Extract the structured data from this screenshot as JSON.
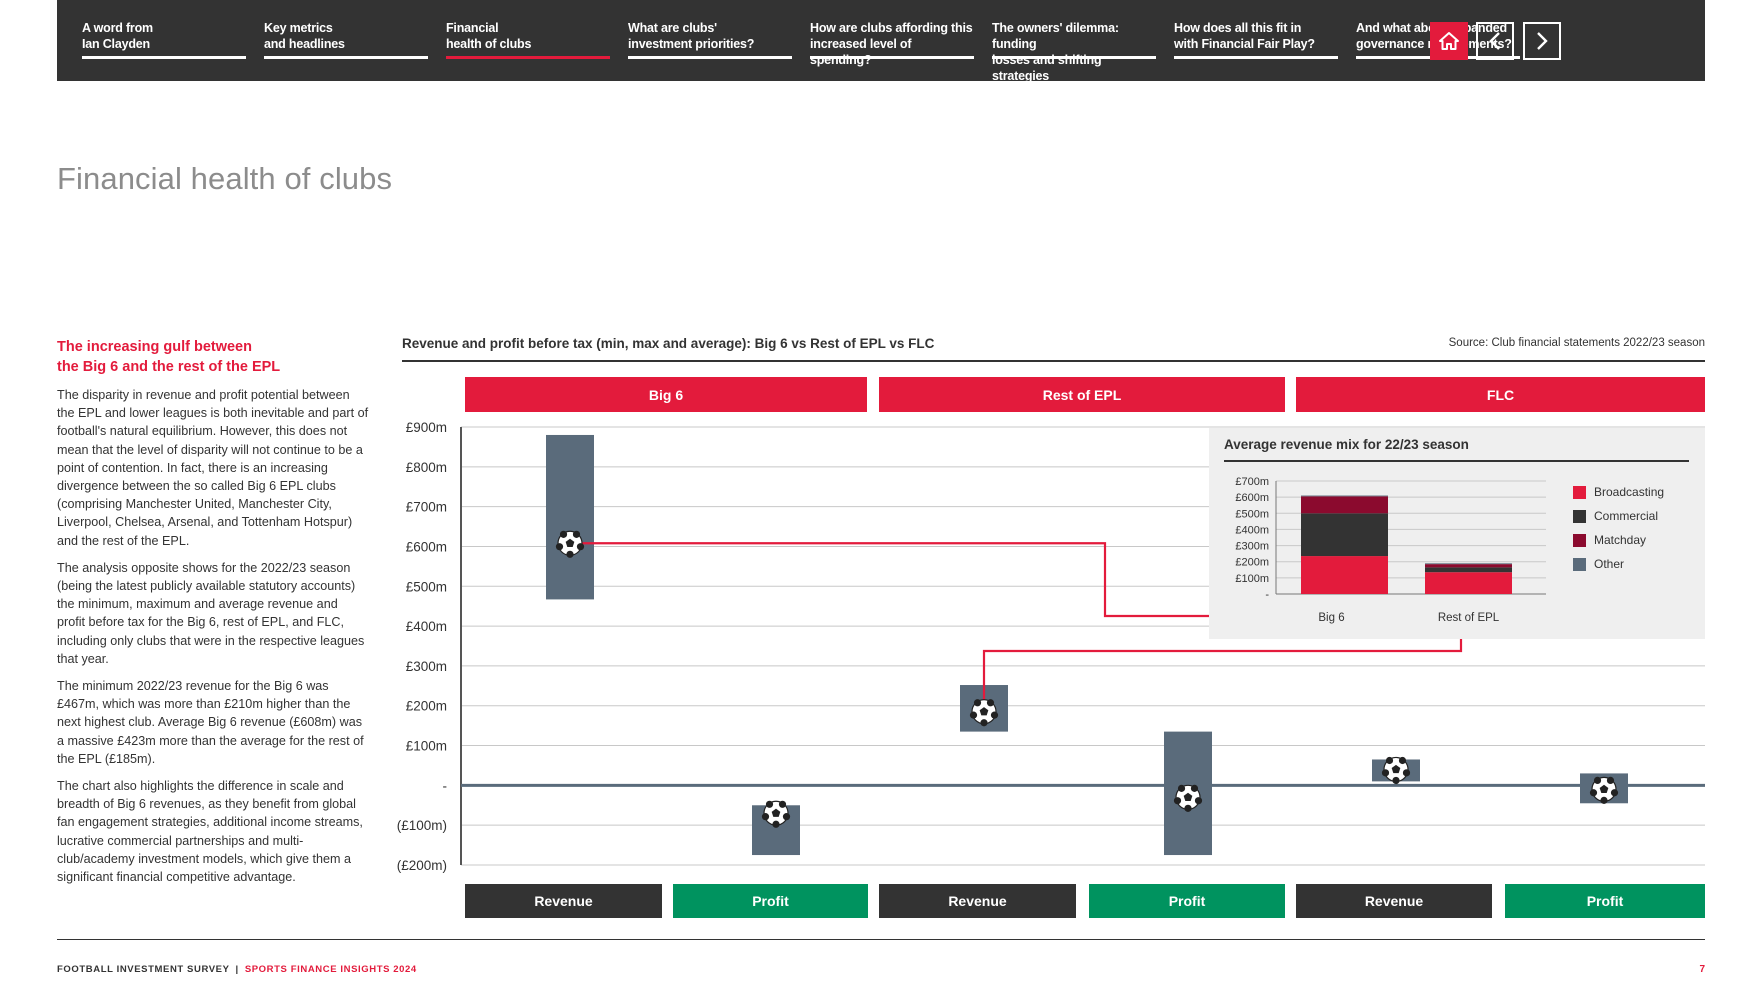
{
  "nav": {
    "items": [
      {
        "line1": "A word from",
        "line2": "Ian Clayden",
        "active": false
      },
      {
        "line1": "Key metrics",
        "line2": "and headlines",
        "active": false
      },
      {
        "line1": "Financial",
        "line2": "health of clubs",
        "active": true
      },
      {
        "line1": "What are clubs'",
        "line2": "investment priorities?",
        "active": false
      },
      {
        "line1": "How are clubs affording this",
        "line2": "increased level of spending?",
        "active": false
      },
      {
        "line1": "The owners' dilemma: funding",
        "line2": "losses and shifting strategies",
        "active": false
      },
      {
        "line1": "How does all this fit in",
        "line2": "with Financial Fair Play?",
        "active": false
      },
      {
        "line1": "And what about expanded",
        "line2": "governance requirements?",
        "active": false
      }
    ],
    "home_icon": "home-icon",
    "prev_icon": "chevron-left-icon",
    "next_icon": "chevron-right-icon"
  },
  "page_title": "Financial health of clubs",
  "lead": {
    "line1": "The increasing gulf between",
    "line2": "the Big 6 and the rest of the EPL"
  },
  "paragraphs": [
    "The disparity in revenue and profit potential between the EPL and lower leagues is both inevitable and part of football's natural equilibrium. However, this does not mean that the level of disparity will not continue to be a point of contention. In fact, there is an increasing divergence between the so called Big 6 EPL clubs (comprising Manchester United, Manchester City, Liverpool, Chelsea, Arsenal, and Tottenham Hotspur) and the rest of the EPL.",
    "The analysis opposite shows for the 2022/23 season (being the latest publicly available statutory accounts) the minimum, maximum and average revenue and profit before tax for the Big 6, rest of EPL, and FLC, including only clubs that were in the respective leagues that year.",
    "The minimum 2022/23 revenue for the Big 6 was £467m, which was more than £210m higher than the next highest club. Average Big 6 revenue (£608m) was a massive £423m more than the average for the rest of the EPL (£185m).",
    "The chart also highlights the difference in scale and breadth of Big 6 revenues, as they benefit from global fan engagement strategies, additional income streams, lucrative commercial partnerships and multi-club/academy investment models, which give them a significant financial competitive advantage."
  ],
  "colors": {
    "accent": "#e31b3c",
    "dark": "#333333",
    "profit": "#00935f",
    "range_bar": "#5a6b7b",
    "grid": "#c8c8c8"
  },
  "chart_data": [
    {
      "type": "bar",
      "subtype": "floating-range-with-average-marker",
      "title": "Revenue and profit before tax (min, max and average): Big 6 vs Rest of EPL vs FLC",
      "source": "Source: Club financial statements 2022/23 season",
      "groups": [
        "Big 6",
        "Rest of EPL",
        "FLC"
      ],
      "categories": [
        "Revenue",
        "Profit"
      ],
      "y_unit": "£m",
      "ylim": [
        -200,
        900
      ],
      "y_ticks": [
        {
          "value": 900,
          "label": "£900m"
        },
        {
          "value": 800,
          "label": "£800m"
        },
        {
          "value": 700,
          "label": "£700m"
        },
        {
          "value": 600,
          "label": "£600m"
        },
        {
          "value": 500,
          "label": "£500m"
        },
        {
          "value": 400,
          "label": "£400m"
        },
        {
          "value": 300,
          "label": "£300m"
        },
        {
          "value": 200,
          "label": "£200m"
        },
        {
          "value": 100,
          "label": "£100m"
        },
        {
          "value": 0,
          "label": "-"
        },
        {
          "value": -100,
          "label": "(£100m)"
        },
        {
          "value": -200,
          "label": "(£200m)"
        }
      ],
      "grid": true,
      "marker_icon": "football-icon",
      "series": [
        {
          "group": "Big 6",
          "category": "Revenue",
          "min": 467,
          "max": 880,
          "avg": 608
        },
        {
          "group": "Big 6",
          "category": "Profit",
          "min": -175,
          "max": -50,
          "avg": -70
        },
        {
          "group": "Rest of EPL",
          "category": "Revenue",
          "min": 135,
          "max": 252,
          "avg": 185
        },
        {
          "group": "Rest of EPL",
          "category": "Profit",
          "min": -175,
          "max": 135,
          "avg": -30
        },
        {
          "group": "FLC",
          "category": "Revenue",
          "min": 10,
          "max": 65,
          "avg": 40
        },
        {
          "group": "FLC",
          "category": "Profit",
          "min": -45,
          "max": 30,
          "avg": -10
        }
      ]
    },
    {
      "type": "bar",
      "subtype": "stacked",
      "title": "Average revenue mix for 22/23 season",
      "categories": [
        "Big 6",
        "Rest of EPL"
      ],
      "y_unit": "£m",
      "ylim": [
        0,
        700
      ],
      "y_ticks": [
        {
          "value": 700,
          "label": "£700m"
        },
        {
          "value": 600,
          "label": "£600m"
        },
        {
          "value": 500,
          "label": "£500m"
        },
        {
          "value": 400,
          "label": "£400m"
        },
        {
          "value": 300,
          "label": "£300m"
        },
        {
          "value": 200,
          "label": "£200m"
        },
        {
          "value": 100,
          "label": "£100m"
        },
        {
          "value": 0,
          "label": "-"
        }
      ],
      "legend_position": "right",
      "series": [
        {
          "name": "Broadcasting",
          "color": "#e31b3c",
          "values": [
            235,
            135
          ]
        },
        {
          "name": "Commercial",
          "color": "#333333",
          "values": [
            265,
            30
          ]
        },
        {
          "name": "Matchday",
          "color": "#8b0a2e",
          "values": [
            105,
            20
          ]
        },
        {
          "name": "Other",
          "color": "#5a6b7b",
          "values": [
            5,
            5
          ]
        }
      ]
    }
  ],
  "footer": {
    "left": "FOOTBALL INVESTMENT SURVEY",
    "separator": "|",
    "right": "SPORTS FINANCE INSIGHTS 2024",
    "page": "7"
  }
}
